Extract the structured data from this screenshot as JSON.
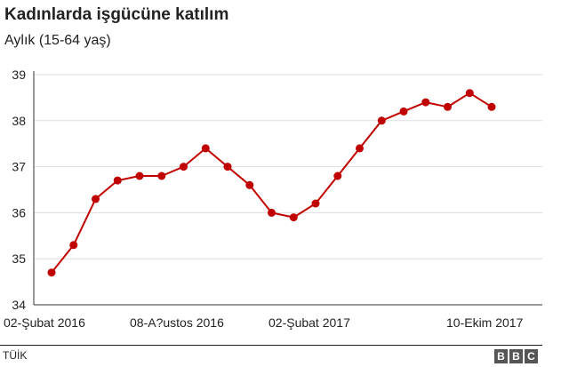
{
  "chart_data": {
    "type": "line",
    "title": "Kadınlarda işgücüne katılım",
    "subtitle": "Aylık (15-64 yaş)",
    "x_tick_labels": [
      "02-Şubat 2016",
      "08-A?ustos 2016",
      "02-Şubat 2017",
      "10-Ekim 2017"
    ],
    "y_ticks": [
      34,
      35,
      36,
      37,
      38,
      39
    ],
    "ylim": [
      34,
      39
    ],
    "grid": true,
    "series": [
      {
        "color": "#c00000",
        "values": [
          34.7,
          35.3,
          36.3,
          36.7,
          36.8,
          36.8,
          37.0,
          37.4,
          37.0,
          36.6,
          36.0,
          35.9,
          36.2,
          36.8,
          37.4,
          38.0,
          38.2,
          38.4,
          38.3,
          38.6,
          38.3
        ]
      }
    ]
  },
  "footer": {
    "source": "TÜİK",
    "logo_letters": [
      "B",
      "B",
      "C"
    ]
  }
}
